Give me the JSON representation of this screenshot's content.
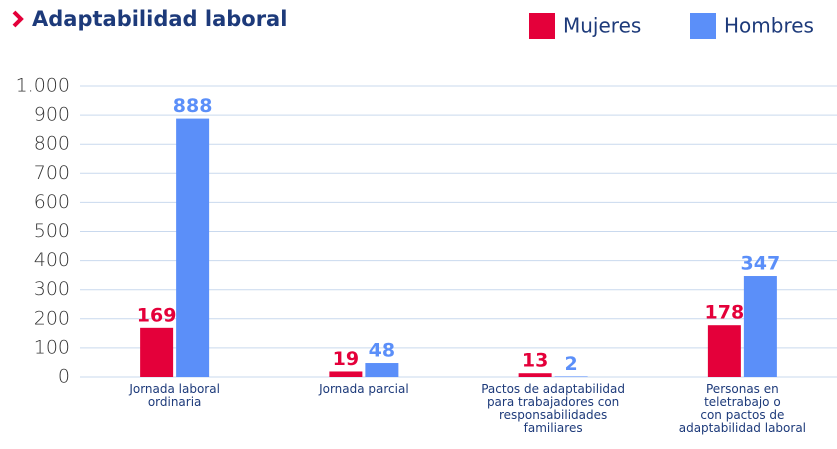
{
  "chart_data": {
    "type": "bar",
    "title": "Adaptabilidad laboral",
    "categories": [
      "Jornada laboral\nordinaria",
      "Jornada parcial",
      "Pactos de adaptabilidad\npara trabajadores con\nresponsabilidades\nfamiliares",
      "Personas en\nteletrabajo o\ncon pactos de\nadaptabilidad laboral"
    ],
    "series": [
      {
        "name": "Mujeres",
        "color": "#e4003a",
        "values": [
          169,
          19,
          13,
          178
        ]
      },
      {
        "name": "Hombres",
        "color": "#5b8ff9",
        "values": [
          888,
          48,
          2,
          347
        ]
      }
    ],
    "ylim": [
      0,
      1000
    ],
    "yticks": [
      0,
      100,
      200,
      300,
      400,
      500,
      600,
      700,
      800,
      900,
      {
        "value": 1000,
        "label": "1.000"
      }
    ],
    "grid": true,
    "legend": "top-right"
  }
}
